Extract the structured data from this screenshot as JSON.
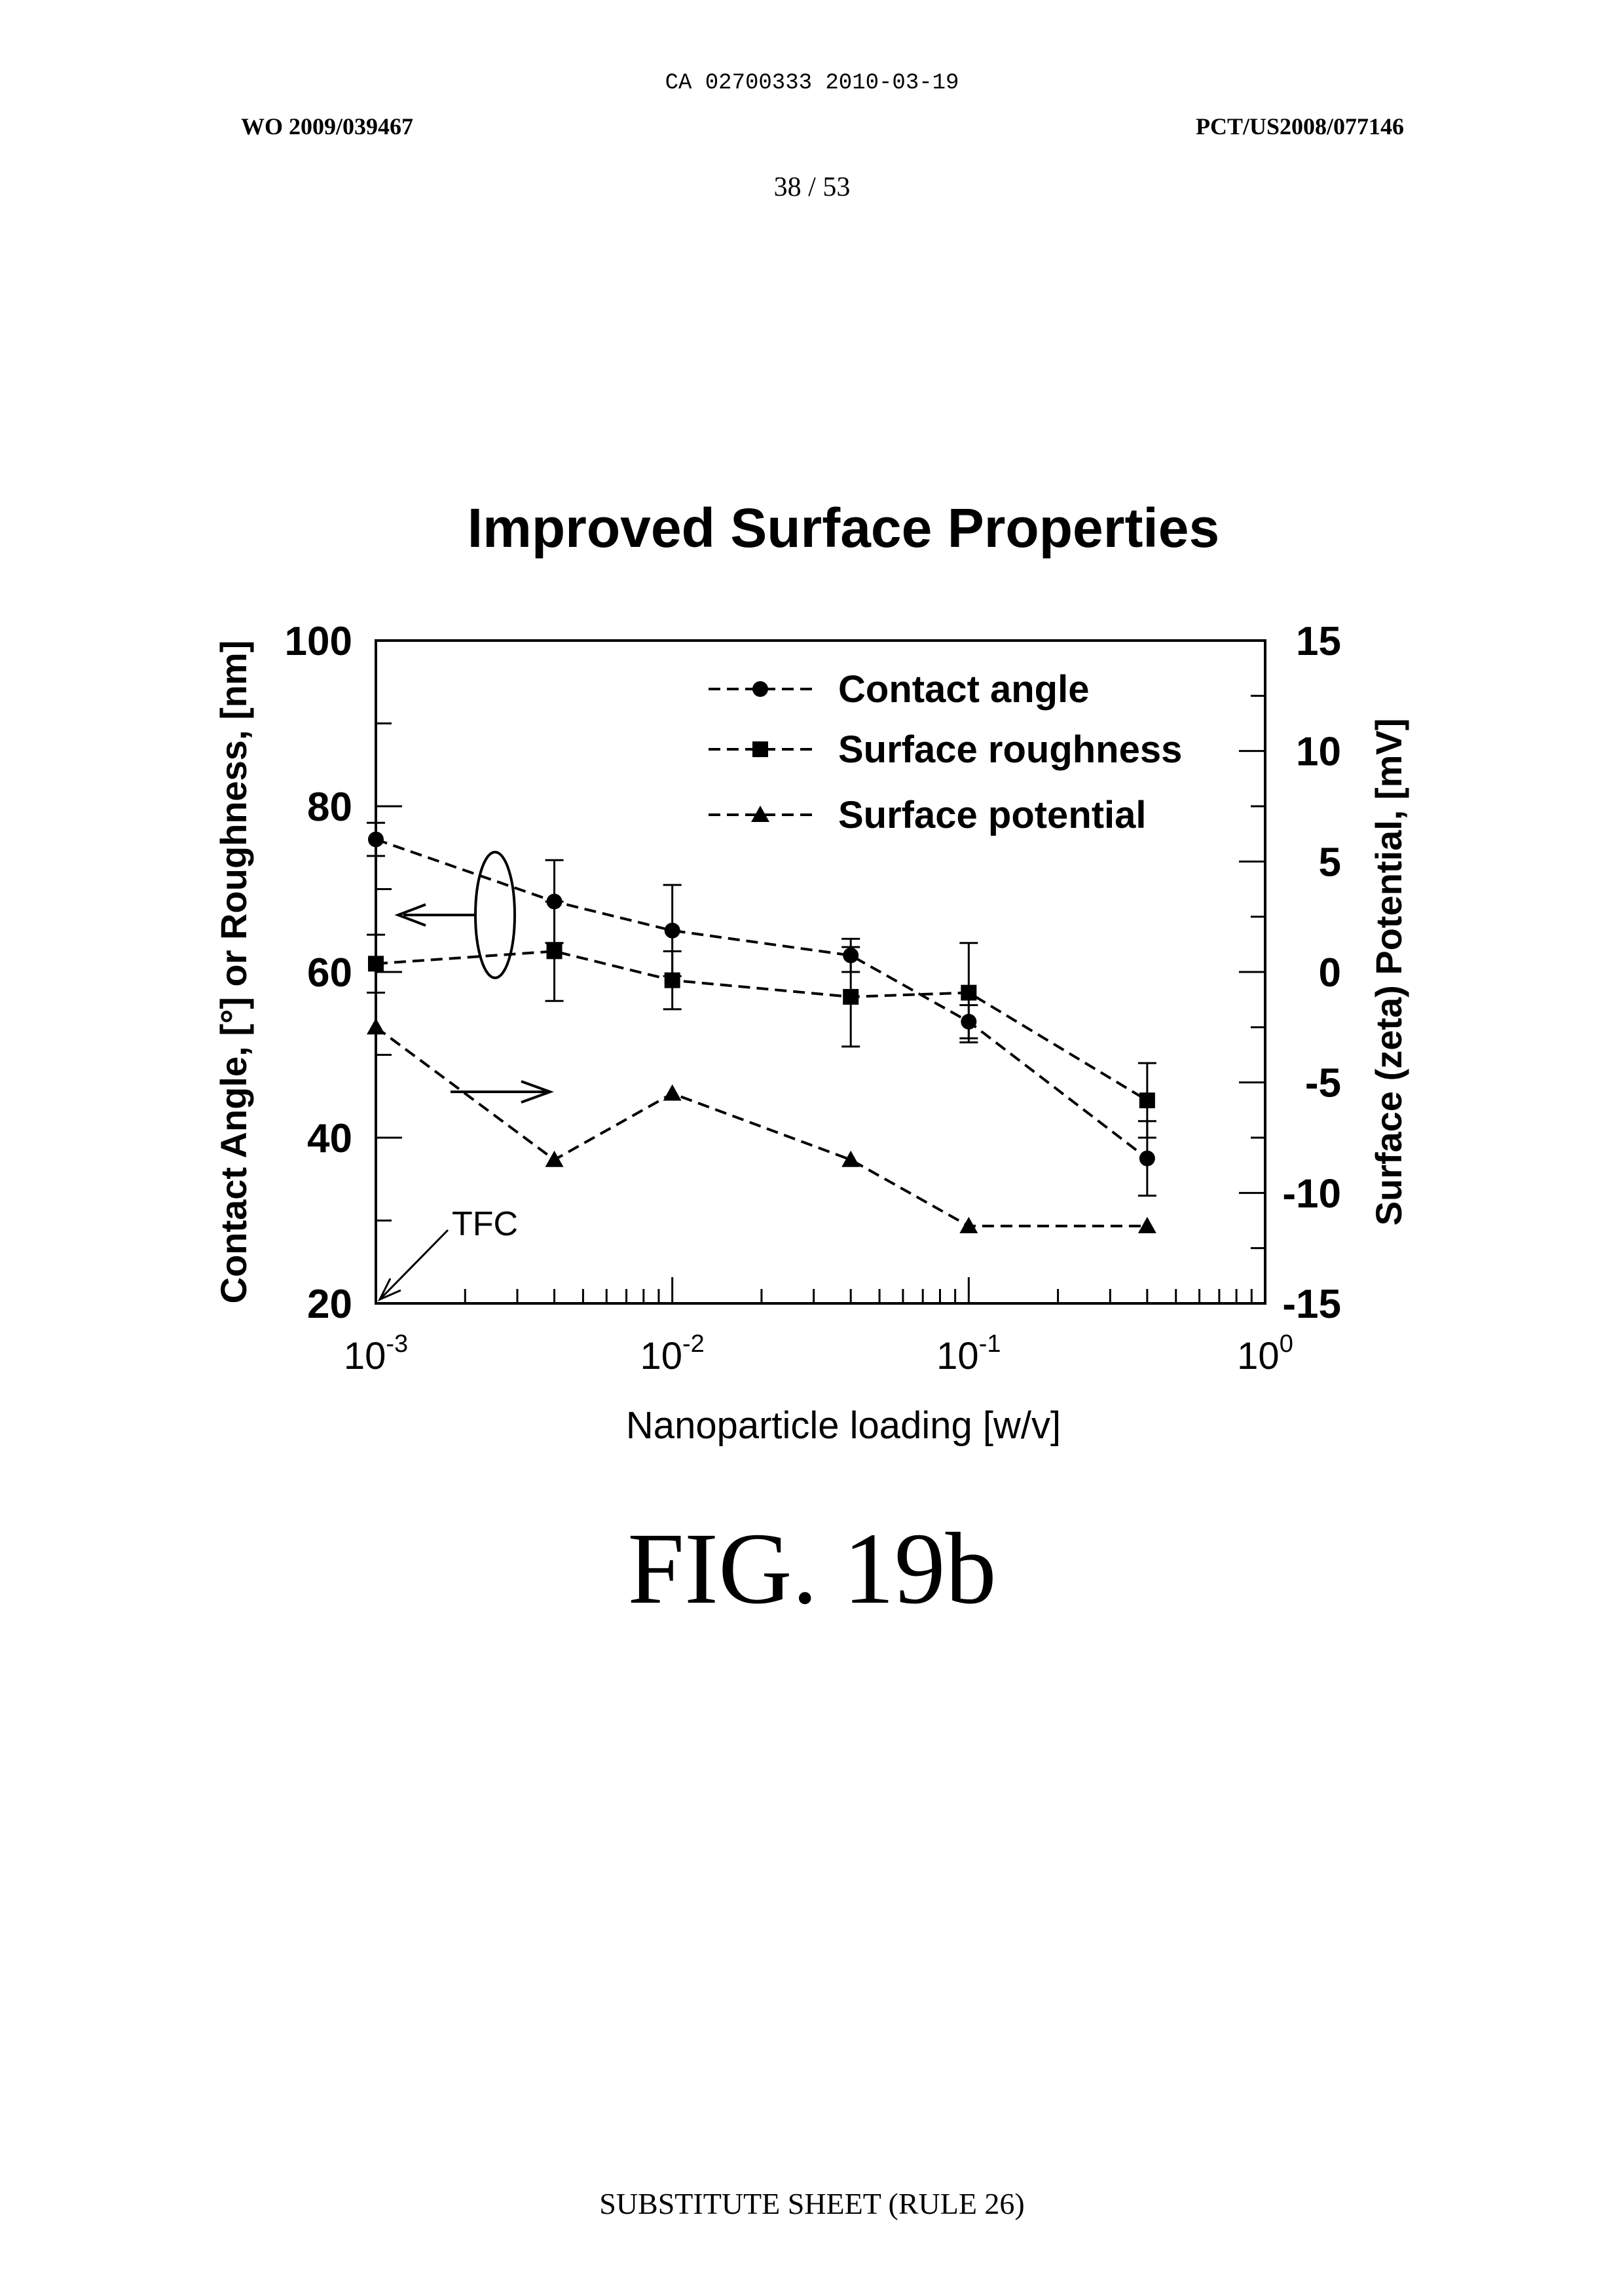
{
  "header": {
    "ca_line": "CA 02700333 2010-03-19",
    "wo_number": "WO 2009/039467",
    "pct_number": "PCT/US2008/077146",
    "page": "38 / 53"
  },
  "figure_label": "FIG. 19b",
  "footer": "SUBSTITUTE SHEET (RULE 26)",
  "chart_data": {
    "type": "line",
    "title": "Improved Surface Properties",
    "xlabel": "Nanoparticle loading [w/v]",
    "ylabel_left": "Contact Angle, [°] or Roughness, [nm]",
    "ylabel_right": "Surface (zeta) Potential, [mV]",
    "x_scale": "log",
    "xlim": [
      0.001,
      1
    ],
    "ylim_left": [
      20,
      100
    ],
    "ylim_right": [
      -15,
      15
    ],
    "x_ticks": [
      {
        "value": 0.001,
        "base": "10",
        "exp": "-3"
      },
      {
        "value": 0.01,
        "base": "10",
        "exp": "-2"
      },
      {
        "value": 0.1,
        "base": "10",
        "exp": "-1"
      },
      {
        "value": 1,
        "base": "10",
        "exp": "0"
      }
    ],
    "y_ticks_left": [
      "20",
      "40",
      "60",
      "80",
      "100"
    ],
    "y_ticks_right": [
      "-15",
      "-10",
      "-5",
      "0",
      "5",
      "10",
      "15"
    ],
    "legend_position": "top-right",
    "series": [
      {
        "name": "Contact angle",
        "marker": "circle",
        "axis": "left",
        "x": [
          0.001,
          0.004,
          0.01,
          0.04,
          0.1,
          0.4
        ],
        "y": [
          76,
          68.5,
          65,
          62,
          54,
          37.5
        ],
        "err": [
          2,
          5,
          5.5,
          2,
          2,
          4.5
        ]
      },
      {
        "name": "Surface roughness",
        "marker": "square",
        "axis": "left",
        "x": [
          0.001,
          0.004,
          0.01,
          0.04,
          0.1,
          0.4
        ],
        "y": [
          61,
          62.5,
          59,
          57,
          57.5,
          44.5
        ],
        "err": [
          3.5,
          6,
          3.5,
          6,
          6,
          4.5
        ]
      },
      {
        "name": "Surface potential",
        "marker": "triangle",
        "axis": "right",
        "x": [
          0.001,
          0.004,
          0.01,
          0.04,
          0.1,
          0.4
        ],
        "y": [
          -2.5,
          -8.5,
          -5.5,
          -8.5,
          -11.5,
          -11.5
        ]
      }
    ],
    "annotations": [
      {
        "text": "TFC"
      }
    ]
  }
}
